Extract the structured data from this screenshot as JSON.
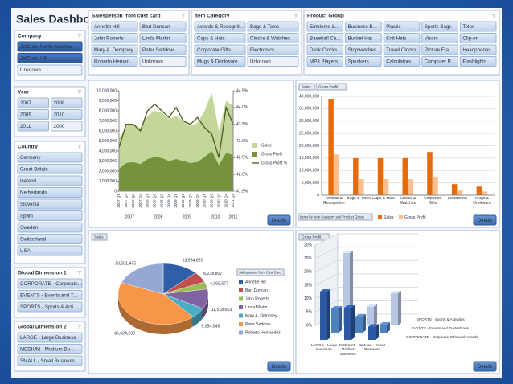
{
  "header": {
    "title": "Sales Dashboard"
  },
  "slicers": [
    {
      "title": "Salesperson from cust card",
      "items": [
        {
          "label": "Annette Hill",
          "state": "normal"
        },
        {
          "label": "Bart Duncan",
          "state": "normal"
        },
        {
          "label": "John Roberts",
          "state": "normal"
        },
        {
          "label": "Linda Martin",
          "state": "normal"
        },
        {
          "label": "Mary A. Dempsey",
          "state": "normal"
        },
        {
          "label": "Peter Saddow",
          "state": "normal"
        },
        {
          "label": "Roberto Hernan...",
          "state": "normal"
        },
        {
          "label": "Unknown",
          "state": "disabled"
        }
      ]
    },
    {
      "title": "Item Category",
      "items": [
        {
          "label": "Awards & Recogniti...",
          "state": "normal"
        },
        {
          "label": "Bags & Totes",
          "state": "normal"
        },
        {
          "label": "Caps & Hats",
          "state": "normal"
        },
        {
          "label": "Clocks & Watches",
          "state": "normal"
        },
        {
          "label": "Corporate Gifts",
          "state": "normal"
        },
        {
          "label": "Electronics",
          "state": "normal"
        },
        {
          "label": "Mugs & Drinkware",
          "state": "normal"
        },
        {
          "label": "Unknown",
          "state": "disabled"
        }
      ]
    },
    {
      "title": "Product Group",
      "items": [
        {
          "label": "Emblems &...",
          "state": "normal"
        },
        {
          "label": "Business B...",
          "state": "normal"
        },
        {
          "label": "Plastic",
          "state": "normal"
        },
        {
          "label": "Sports Bags",
          "state": "normal"
        },
        {
          "label": "Totes",
          "state": "normal"
        },
        {
          "label": "Baseball Ca...",
          "state": "normal"
        },
        {
          "label": "Bucket Hat",
          "state": "normal"
        },
        {
          "label": "Knit Hats",
          "state": "normal"
        },
        {
          "label": "Visors",
          "state": "normal"
        },
        {
          "label": "Clip-on",
          "state": "normal"
        },
        {
          "label": "Desk Clocks",
          "state": "normal"
        },
        {
          "label": "Stopwatches",
          "state": "normal"
        },
        {
          "label": "Travel Clocks",
          "state": "normal"
        },
        {
          "label": "Picture Fra...",
          "state": "normal"
        },
        {
          "label": "Headphones",
          "state": "normal"
        },
        {
          "label": "MP3 Players",
          "state": "normal"
        },
        {
          "label": "Speakers",
          "state": "normal"
        },
        {
          "label": "Calculators",
          "state": "normal"
        },
        {
          "label": "Computer P...",
          "state": "normal"
        },
        {
          "label": "Flashlights",
          "state": "normal"
        }
      ]
    },
    {
      "title": "Company",
      "items": [
        {
          "label": "JetCorp, North America",
          "state": "selected"
        },
        {
          "label": "JetCorp, UK",
          "state": "selected"
        },
        {
          "label": "Unknown",
          "state": "disabled"
        }
      ]
    },
    {
      "title": "Year",
      "items": [
        {
          "label": "2007",
          "state": "normal"
        },
        {
          "label": "2008",
          "state": "normal"
        },
        {
          "label": "2009",
          "state": "normal"
        },
        {
          "label": "2010",
          "state": "normal"
        },
        {
          "label": "2011",
          "state": "normal"
        },
        {
          "label": "2000",
          "state": "disabled"
        }
      ]
    },
    {
      "title": "Country",
      "items": [
        {
          "label": "Germany",
          "state": "normal"
        },
        {
          "label": "Great Britain",
          "state": "normal"
        },
        {
          "label": "Iceland",
          "state": "normal"
        },
        {
          "label": "Netherlands",
          "state": "normal"
        },
        {
          "label": "Slovenia",
          "state": "normal"
        },
        {
          "label": "Spain",
          "state": "normal"
        },
        {
          "label": "Sweden",
          "state": "normal"
        },
        {
          "label": "Switzerland",
          "state": "normal"
        },
        {
          "label": "USA",
          "state": "normal"
        }
      ]
    },
    {
      "title": "Global Dimension 1",
      "items": [
        {
          "label": "CORPORATE - Corporate...",
          "state": "normal"
        },
        {
          "label": "EVENTS - Events and T...",
          "state": "normal"
        },
        {
          "label": "SPORTS - Sports & Acti...",
          "state": "normal"
        }
      ]
    },
    {
      "title": "Global Dimension 2",
      "items": [
        {
          "label": "LARGE - Large Business",
          "state": "normal"
        },
        {
          "label": "MEDIUM - Medium Bu...",
          "state": "normal"
        },
        {
          "label": "SMALL - Small Business",
          "state": "normal"
        }
      ]
    }
  ],
  "chart_data": [
    {
      "type": "area",
      "categories": [
        "2007 Q1",
        "2007 Q2",
        "2007 Q3",
        "2007 Q4",
        "2008 Q1",
        "2008 Q2",
        "2008 Q3",
        "2008 Q4",
        "2009 Q1",
        "2009 Q2",
        "2009 Q3",
        "2009 Q4",
        "2010 Q1",
        "2010 Q2",
        "2010 Q3",
        "2010 Q4",
        "2011 Q1"
      ],
      "years": [
        "2007",
        "2008",
        "2009",
        "2010",
        "2011"
      ],
      "series": [
        {
          "name": "Sales",
          "color": "#c4d79b",
          "values": [
            5200000,
            6500000,
            6700000,
            6300000,
            7500000,
            8000000,
            7800000,
            7200000,
            7500000,
            7000000,
            6500000,
            6800000,
            8000000,
            9800000,
            6000000,
            9000000,
            8500000
          ]
        },
        {
          "name": "Gross Profit",
          "color": "#76923c",
          "values": [
            2200000,
            2800000,
            2900000,
            2700000,
            3200000,
            3400000,
            3300000,
            3000000,
            3200000,
            3000000,
            2800000,
            2900000,
            3400000,
            4000000,
            2600000,
            3800000,
            3600000
          ]
        },
        {
          "name": "Gross Profit %",
          "color": "#4f6228",
          "axis": "y2",
          "values": [
            42.8,
            43.5,
            43.5,
            43.3,
            43.9,
            44.1,
            43.9,
            43.7,
            44.0,
            43.6,
            43.5,
            43.7,
            43.4,
            43.2,
            42.5,
            44.0,
            43.5
          ]
        }
      ],
      "ylim": [
        0,
        10000000
      ],
      "yticks": [
        0,
        {
          "value": 1000000,
          "label": "1,000,000"
        },
        {
          "value": 2000000,
          "label": "2,000,000"
        },
        {
          "value": 3000000,
          "label": "3,000,000"
        },
        {
          "value": 4000000,
          "label": "4,000,000"
        },
        {
          "value": 5000000,
          "label": "5,000,000"
        },
        {
          "value": 6000000,
          "label": "6,000,000"
        },
        {
          "value": 7000000,
          "label": "7,000,000"
        },
        {
          "value": 8000000,
          "label": "8,000,000"
        },
        {
          "value": 9000000,
          "label": "9,000,000"
        },
        {
          "value": 10000000,
          "label": "10,000,000"
        }
      ],
      "y2lim": [
        41.5,
        44.5
      ],
      "y2ticks": [
        {
          "value": 41.5,
          "label": "41.5%"
        },
        {
          "value": 42,
          "label": "42.0%"
        },
        {
          "value": 42.5,
          "label": "42.5%"
        },
        {
          "value": 43,
          "label": "43.0%"
        },
        {
          "value": 43.5,
          "label": "43.5%"
        },
        {
          "value": 44,
          "label": "44.0%"
        },
        {
          "value": 44.5,
          "label": "44.5%"
        }
      ],
      "button": "Details"
    },
    {
      "type": "bar",
      "buttons": [
        "Sales",
        "Gross Profit"
      ],
      "filter": "Items by Item Category and Product Group",
      "categories": [
        "Awards & Recognition",
        "Bags & Totes",
        "Caps & Hats",
        "Clocks & Watches",
        "Corporate Gifts",
        "Electronics",
        "Mugs & Drinkware"
      ],
      "series": [
        {
          "name": "Sales",
          "color": "#e46c0a",
          "values": [
            39000000,
            15000000,
            15000000,
            15000000,
            17500000,
            4500000,
            3500000
          ]
        },
        {
          "name": "Gross Profit",
          "color": "#fabf8f",
          "values": [
            16500000,
            6500000,
            6500000,
            6500000,
            7500000,
            2000000,
            1500000
          ]
        }
      ],
      "ylim": [
        0,
        40000000
      ],
      "yticks": [
        0,
        {
          "value": 5000000,
          "label": "5,000,000"
        },
        {
          "value": 10000000,
          "label": "10,000,000"
        },
        {
          "value": 15000000,
          "label": "15,000,000"
        },
        {
          "value": 20000000,
          "label": "20,000,000"
        },
        {
          "value": 25000000,
          "label": "25,000,000"
        },
        {
          "value": 30000000,
          "label": "30,000,000"
        },
        {
          "value": 35000000,
          "label": "35,000,000"
        },
        {
          "value": 40000000,
          "label": "40,000,000"
        }
      ],
      "button": "Details"
    },
    {
      "type": "pie",
      "buttons": [
        "Sales"
      ],
      "legend_title": "Salesperson from Cust Card",
      "categories": [
        "Annette Hill",
        "Bart Duncan",
        "John Roberts",
        "Linda Martin",
        "Mary A. Dempsey",
        "Peter Saddow",
        "Roberto Hernandez"
      ],
      "values": [
        13934620,
        6218807,
        4268577,
        11518663,
        6054949,
        46624239,
        20581475
      ],
      "value_labels": [
        "13,934,620",
        "6,218,807",
        "4,268,577",
        "11,518,663",
        "6,054,949",
        "46,624,239",
        "20,581,475"
      ],
      "colors": [
        "#2f5fa7",
        "#c0504d",
        "#9bbb59",
        "#8064a2",
        "#4bacc6",
        "#f79646",
        "#95a7d3"
      ],
      "button": "Details"
    },
    {
      "type": "bar3d",
      "buttons": [
        "Gross Profit"
      ],
      "categories": [
        "LARGE - Large Business",
        "MEDIUM - Medium Business",
        "SMALL - Small Business"
      ],
      "series": [
        {
          "name": "SPORTS - Sports & Activities",
          "color": "#b8c7e4",
          "values": [
            27,
            7,
            12
          ]
        },
        {
          "name": "EVENTS - Events and Tradeshows",
          "color": "#4f81bd",
          "values": [
            9,
            6,
            3
          ]
        },
        {
          "name": "CORPORATE - Corporate Gifts and Awards",
          "color": "#2b59a3",
          "values": [
            18,
            12,
            5
          ]
        }
      ],
      "ylim": [
        0,
        30
      ],
      "yticks": [
        {
          "value": 0,
          "label": "0%"
        },
        {
          "value": 5,
          "label": "5%"
        },
        {
          "value": 10,
          "label": "10%"
        },
        {
          "value": 15,
          "label": "15%"
        },
        {
          "value": 20,
          "label": "20%"
        },
        {
          "value": 25,
          "label": "25%"
        },
        {
          "value": 30,
          "label": "30%"
        }
      ],
      "button": "Details"
    }
  ]
}
